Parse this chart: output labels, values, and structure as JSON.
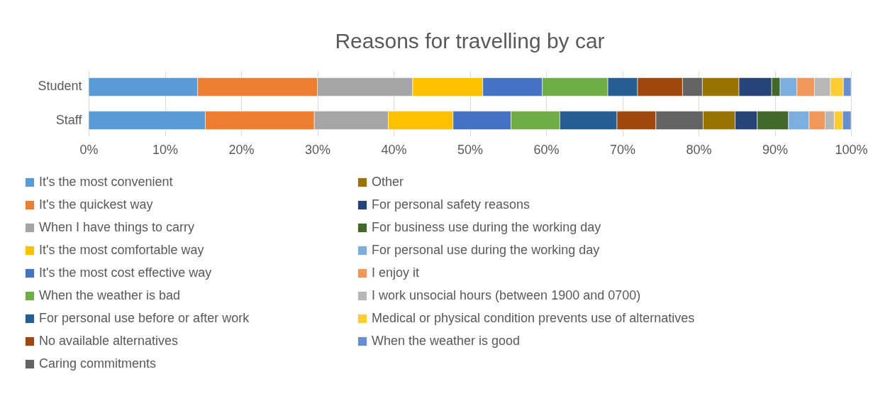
{
  "chart_data": {
    "type": "bar",
    "title": "Reasons for travelling by car",
    "orientation": "horizontal",
    "stacked": true,
    "categories": [
      "Student",
      "Staff"
    ],
    "xlim": [
      0,
      100
    ],
    "xticks": [
      {
        "value": 0,
        "label": "0%"
      },
      {
        "value": 10,
        "label": "10%"
      },
      {
        "value": 20,
        "label": "20%"
      },
      {
        "value": 30,
        "label": "30%"
      },
      {
        "value": 40,
        "label": "40%"
      },
      {
        "value": 50,
        "label": "50%"
      },
      {
        "value": 60,
        "label": "60%"
      },
      {
        "value": 70,
        "label": "70%"
      },
      {
        "value": 80,
        "label": "80%"
      },
      {
        "value": 90,
        "label": "90%"
      },
      {
        "value": 100,
        "label": "100%"
      }
    ],
    "grid": "x",
    "legend": "bottom",
    "series": [
      {
        "name": "It's the most convenient",
        "color": "#5b9bd5",
        "values": [
          14.3,
          15.3
        ]
      },
      {
        "name": "It's the quickest way",
        "color": "#ed7d31",
        "values": [
          15.7,
          14.3
        ]
      },
      {
        "name": "When I have things to carry",
        "color": "#a5a5a5",
        "values": [
          12.5,
          9.7
        ]
      },
      {
        "name": "It's the most comfortable way",
        "color": "#ffc000",
        "values": [
          9.2,
          8.5
        ]
      },
      {
        "name": "It's the most cost effective way",
        "color": "#4472c4",
        "values": [
          7.8,
          7.6
        ]
      },
      {
        "name": "When the weather is bad",
        "color": "#70ad47",
        "values": [
          8.6,
          6.4
        ]
      },
      {
        "name": "For personal use before or after work",
        "color": "#255e91",
        "values": [
          3.9,
          7.5
        ]
      },
      {
        "name": "No available alternatives",
        "color": "#9e480e",
        "values": [
          5.9,
          5.1
        ]
      },
      {
        "name": "Caring commitments",
        "color": "#636363",
        "values": [
          2.6,
          6.2
        ]
      },
      {
        "name": "Other",
        "color": "#997300",
        "values": [
          4.8,
          4.2
        ]
      },
      {
        "name": "For personal safety reasons",
        "color": "#264478",
        "values": [
          4.3,
          2.9
        ]
      },
      {
        "name": "For business use during the working day",
        "color": "#43682b",
        "values": [
          1.1,
          4.1
        ]
      },
      {
        "name": "For personal use during the working day",
        "color": "#7cafdd",
        "values": [
          2.2,
          2.7
        ]
      },
      {
        "name": "I enjoy it",
        "color": "#f1975a",
        "values": [
          2.3,
          2.1
        ]
      },
      {
        "name": "I work unsocial hours (between 1900 and 0700)",
        "color": "#b7b7b7",
        "values": [
          2.1,
          1.2
        ]
      },
      {
        "name": "Medical or physical condition prevents use of alternatives",
        "color": "#ffcd33",
        "values": [
          1.7,
          1.1
        ]
      },
      {
        "name": "When the weather is good",
        "color": "#698ed0",
        "values": [
          1.0,
          1.1
        ]
      }
    ]
  }
}
